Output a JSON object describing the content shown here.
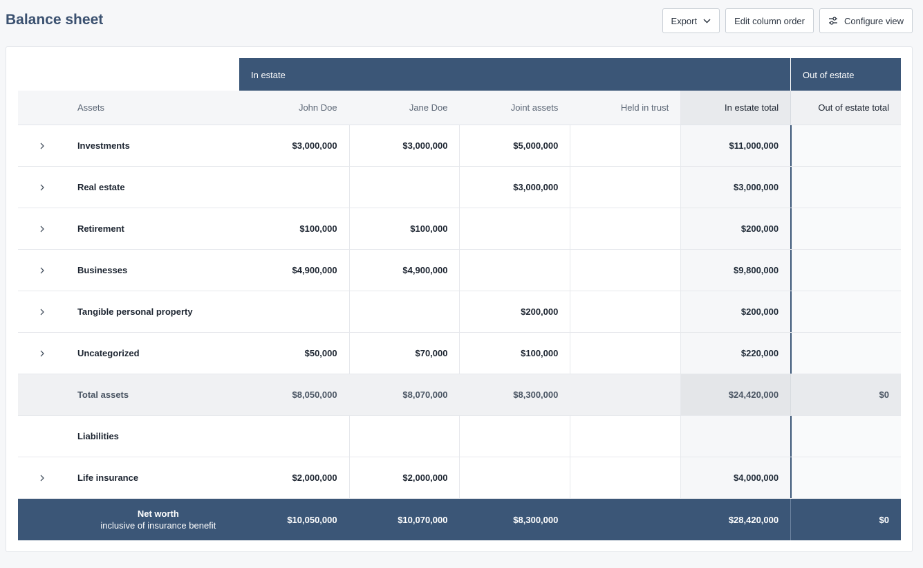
{
  "page": {
    "title": "Balance sheet"
  },
  "toolbar": {
    "export_label": "Export",
    "edit_order_label": "Edit column order",
    "configure_label": "Configure view"
  },
  "table": {
    "group_in_estate": "In estate",
    "group_out_estate": "Out of estate",
    "columns": {
      "label": "Assets",
      "john": "John Doe",
      "jane": "Jane Doe",
      "joint": "Joint assets",
      "trust": "Held in trust",
      "in_total": "In estate total",
      "out_total": "Out of estate total"
    },
    "rows": [
      {
        "label": "Investments",
        "john": "$3,000,000",
        "jane": "$3,000,000",
        "joint": "$5,000,000",
        "trust": "",
        "in_total": "$11,000,000",
        "out_total": ""
      },
      {
        "label": "Real estate",
        "john": "",
        "jane": "",
        "joint": "$3,000,000",
        "trust": "",
        "in_total": "$3,000,000",
        "out_total": ""
      },
      {
        "label": "Retirement",
        "john": "$100,000",
        "jane": "$100,000",
        "joint": "",
        "trust": "",
        "in_total": "$200,000",
        "out_total": ""
      },
      {
        "label": "Businesses",
        "john": "$4,900,000",
        "jane": "$4,900,000",
        "joint": "",
        "trust": "",
        "in_total": "$9,800,000",
        "out_total": ""
      },
      {
        "label": "Tangible personal property",
        "john": "",
        "jane": "",
        "joint": "$200,000",
        "trust": "",
        "in_total": "$200,000",
        "out_total": ""
      },
      {
        "label": "Uncategorized",
        "john": "$50,000",
        "jane": "$70,000",
        "joint": "$100,000",
        "trust": "",
        "in_total": "$220,000",
        "out_total": ""
      }
    ],
    "total_assets": {
      "label": "Total assets",
      "john": "$8,050,000",
      "jane": "$8,070,000",
      "joint": "$8,300,000",
      "trust": "",
      "in_total": "$24,420,000",
      "out_total": "$0"
    },
    "liabilities_label": "Liabilities",
    "life_insurance": {
      "label": "Life insurance",
      "john": "$2,000,000",
      "jane": "$2,000,000",
      "joint": "",
      "trust": "",
      "in_total": "$4,000,000",
      "out_total": ""
    },
    "net_worth": {
      "label": "Net worth",
      "sublabel": "inclusive of insurance benefit",
      "john": "$10,050,000",
      "jane": "$10,070,000",
      "joint": "$8,300,000",
      "trust": "",
      "in_total": "$28,420,000",
      "out_total": "$0"
    }
  },
  "colors": {
    "accent": "#3b5677",
    "title": "#3b5170"
  }
}
